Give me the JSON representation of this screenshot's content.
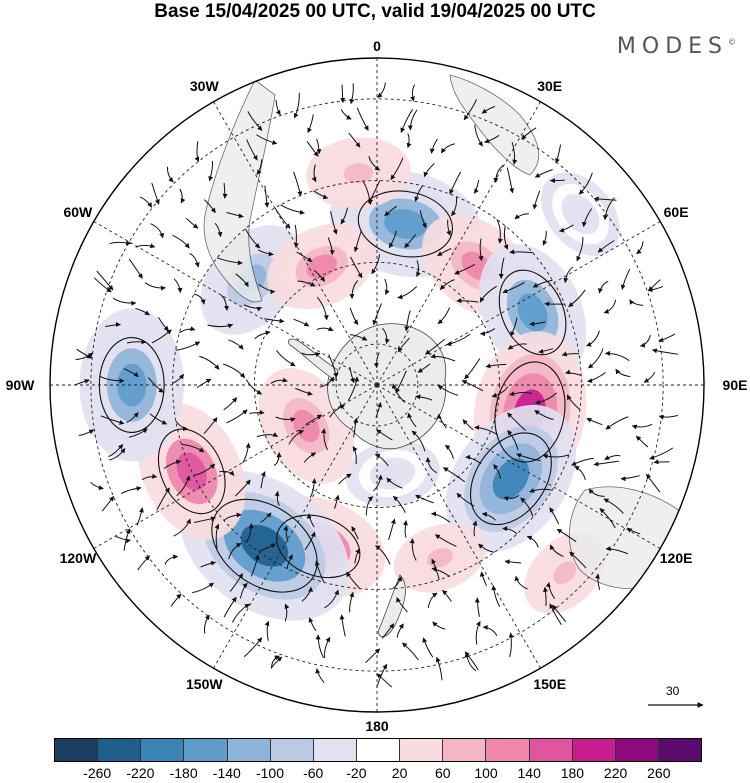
{
  "title": "Base 15/04/2025 00 UTC, valid 19/04/2025 00 UTC",
  "brand": "MODES",
  "brand_mark": "©",
  "longitude_labels": [
    {
      "label": "0",
      "lon": 0
    },
    {
      "label": "30E",
      "lon": 30
    },
    {
      "label": "60E",
      "lon": 60
    },
    {
      "label": "90E",
      "lon": 90
    },
    {
      "label": "120E",
      "lon": 120
    },
    {
      "label": "150E",
      "lon": 150
    },
    {
      "label": "180",
      "lon": 180
    },
    {
      "label": "150W",
      "lon": -150
    },
    {
      "label": "120W",
      "lon": -120
    },
    {
      "label": "90W",
      "lon": -90
    },
    {
      "label": "60W",
      "lon": -60
    },
    {
      "label": "30W",
      "lon": -30
    }
  ],
  "reference_vector": "30",
  "colorbar": {
    "colors": [
      "#1b3f5e",
      "#1f5f8e",
      "#3a83b6",
      "#5e9ccb",
      "#8fb4d9",
      "#bccbe5",
      "#e1e1f0",
      "#ffffff",
      "#f9dcdf",
      "#f4b6c4",
      "#ee86ad",
      "#e0559f",
      "#c61e8f",
      "#8e0a7e",
      "#5a0a6b"
    ],
    "ticks": [
      "-260",
      "-220",
      "-180",
      "-140",
      "-100",
      "-60",
      "-20",
      "20",
      "60",
      "100",
      "140",
      "180",
      "220",
      "260"
    ]
  },
  "anomalies": [
    {
      "lon": 10,
      "lat": -50,
      "value": -180
    },
    {
      "lon": 40,
      "lat": -52,
      "value": 120
    },
    {
      "lon": 65,
      "lat": -48,
      "value": -160
    },
    {
      "lon": 100,
      "lat": -52,
      "value": 200
    },
    {
      "lon": 125,
      "lat": -50,
      "value": -200
    },
    {
      "lon": 160,
      "lat": -45,
      "value": 60
    },
    {
      "lon": -160,
      "lat": -48,
      "value": 150
    },
    {
      "lon": -145,
      "lat": -42,
      "value": -250
    },
    {
      "lon": -115,
      "lat": -40,
      "value": 160
    },
    {
      "lon": -90,
      "lat": -30,
      "value": -180
    },
    {
      "lon": -50,
      "lat": -50,
      "value": -120
    },
    {
      "lon": -25,
      "lat": -58,
      "value": 100
    },
    {
      "lon": -5,
      "lat": -38,
      "value": 80
    },
    {
      "lon": -120,
      "lat": -70,
      "value": 120
    },
    {
      "lon": 170,
      "lat": -68,
      "value": -60
    },
    {
      "lon": 50,
      "lat": -25,
      "value": -60
    },
    {
      "lon": 135,
      "lat": -25,
      "value": 60
    }
  ]
}
